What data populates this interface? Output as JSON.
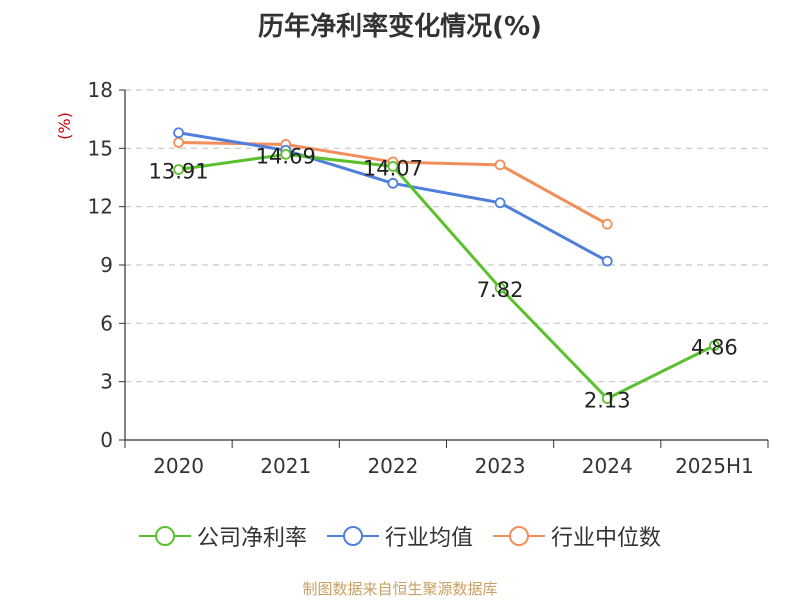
{
  "colors": {
    "company": "#5ac12c",
    "industry_avg": "#4f7fdb",
    "industry_median": "#f28e5a",
    "grid": "#c8c8c8",
    "axis": "#333333",
    "unit": "#cc0000",
    "source": "#c8a062"
  },
  "source_note": "制图数据来自恒生聚源数据库",
  "chart_data": {
    "type": "line",
    "title": "历年净利率变化情况(%)",
    "ylabel": "(%)",
    "xlabel": "",
    "categories": [
      "2020",
      "2021",
      "2022",
      "2023",
      "2024",
      "2025H1"
    ],
    "ylim": [
      0,
      18
    ],
    "yticks": [
      "0",
      "3",
      "6",
      "9",
      "12",
      "15",
      "18"
    ],
    "grid": true,
    "legend_position": "bottom",
    "series": [
      {
        "name": "公司净利率",
        "color": "#5ac12c",
        "values": [
          13.91,
          14.69,
          14.07,
          7.82,
          2.13,
          4.86
        ],
        "labels": [
          "13.91",
          "14.69",
          "14.07",
          "7.82",
          "2.13",
          "4.86"
        ]
      },
      {
        "name": "行业均值",
        "color": "#4f7fdb",
        "values": [
          15.8,
          14.9,
          13.2,
          12.2,
          9.2,
          null
        ]
      },
      {
        "name": "行业中位数",
        "color": "#f28e5a",
        "values": [
          15.3,
          15.2,
          14.3,
          14.15,
          11.1,
          null
        ]
      }
    ]
  }
}
